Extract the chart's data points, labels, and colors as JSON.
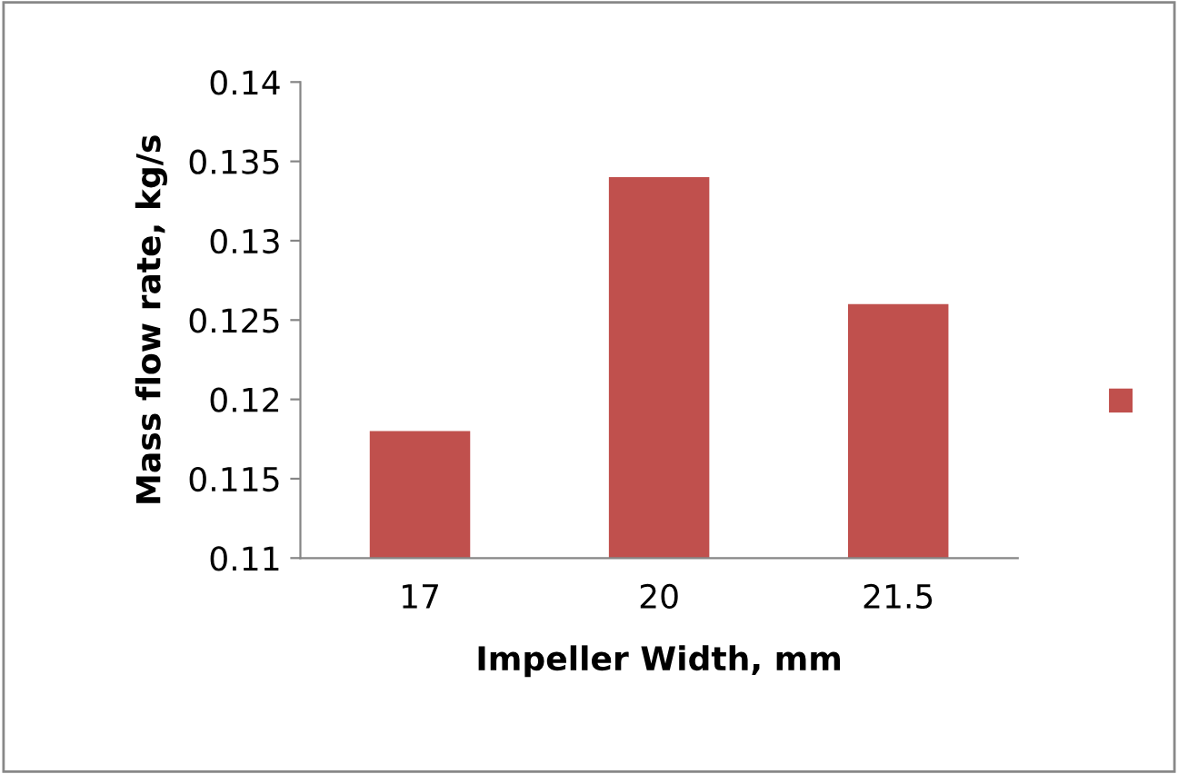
{
  "chart_data": {
    "type": "bar",
    "xlabel": "Impeller Width, mm",
    "ylabel": "Mass flow rate, kg/s",
    "categories": [
      "17",
      "20",
      "21.5"
    ],
    "series": [
      {
        "color": "#c0504d",
        "values": [
          0.118,
          0.134,
          0.126
        ]
      }
    ],
    "ylim": [
      0.11,
      0.14
    ],
    "yticks": [
      0.11,
      0.115,
      0.12,
      0.125,
      0.13,
      0.135,
      0.14
    ],
    "grid": false
  }
}
